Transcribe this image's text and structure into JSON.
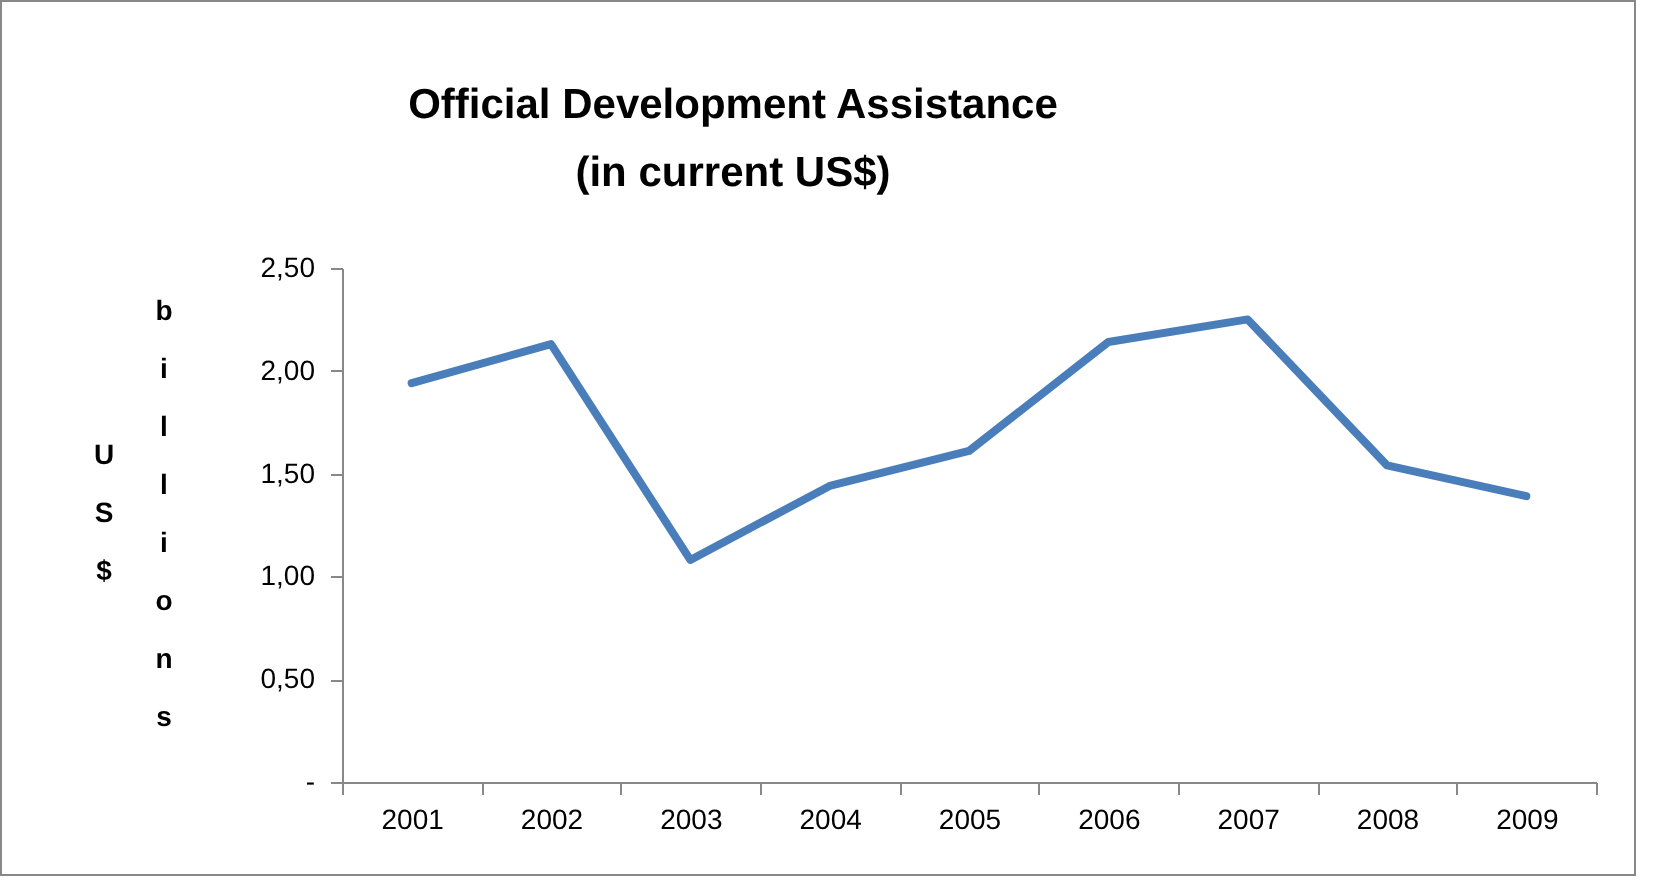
{
  "chart_data": {
    "type": "line",
    "title": "Official Development Assistance\n(in current US$)",
    "ylabel": "US$ billions",
    "categories": [
      "2001",
      "2002",
      "2003",
      "2004",
      "2005",
      "2006",
      "2007",
      "2008",
      "2009"
    ],
    "series": [
      {
        "color": "#4a7ebb",
        "values": [
          1.94,
          2.13,
          1.08,
          1.44,
          1.61,
          2.14,
          2.25,
          1.54,
          1.39
        ]
      }
    ],
    "ylim": [
      0,
      2.5
    ],
    "yticks": [
      {
        "value": 0,
        "label": "-"
      },
      {
        "value": 0.5,
        "label": "0,50"
      },
      {
        "value": 1,
        "label": "1,00"
      },
      {
        "value": 1.5,
        "label": "1,50"
      },
      {
        "value": 2,
        "label": "2,00"
      },
      {
        "value": 2.5,
        "label": "2,50"
      }
    ],
    "grid": false,
    "legend": false,
    "marker": "none",
    "line_style": "solid"
  }
}
